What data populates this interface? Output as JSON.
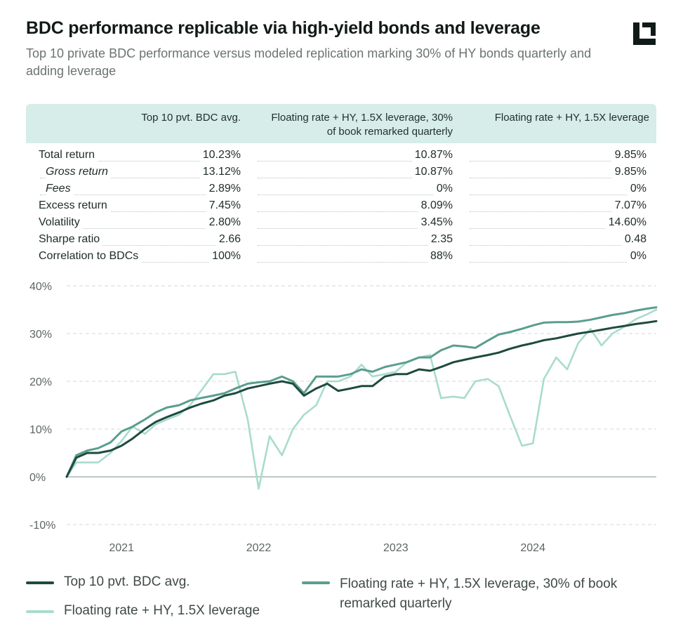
{
  "header": {
    "title": "BDC performance replicable via high-yield bonds and leverage",
    "subtitle": "Top 10 private BDC performance versus modeled replication marking 30% of HY bonds quarterly and adding leverage",
    "logo_icon": "bracket-logo-icon"
  },
  "table": {
    "columns": [
      "Top 10 pvt. BDC avg.",
      "Floating rate + HY, 1.5X leverage, 30% of book remarked quarterly",
      "Floating rate + HY, 1.5X leverage"
    ],
    "rows": [
      {
        "label": "Total return",
        "italic": false,
        "values": [
          "10.23%",
          "10.87%",
          "9.85%"
        ]
      },
      {
        "label": "Gross return",
        "italic": true,
        "values": [
          "13.12%",
          "10.87%",
          "9.85%"
        ]
      },
      {
        "label": "Fees",
        "italic": true,
        "values": [
          "2.89%",
          "0%",
          "0%"
        ]
      },
      {
        "label": "Excess return",
        "italic": false,
        "values": [
          "7.45%",
          "8.09%",
          "7.07%"
        ]
      },
      {
        "label": "Volatility",
        "italic": false,
        "values": [
          "2.80%",
          "3.45%",
          "14.60%"
        ]
      },
      {
        "label": "Sharpe ratio",
        "italic": false,
        "values": [
          "2.66",
          "2.35",
          "0.48"
        ]
      },
      {
        "label": "Correlation to BDCs",
        "italic": false,
        "values": [
          "100%",
          "88%",
          "0%"
        ]
      }
    ]
  },
  "chart_data": {
    "type": "line",
    "title": "",
    "xlabel": "",
    "ylabel": "",
    "ylim": [
      -10,
      40
    ],
    "y_ticks": [
      40,
      30,
      20,
      10,
      0,
      -10
    ],
    "y_tick_labels": [
      "40%",
      "30%",
      "20%",
      "10%",
      "0%",
      "-10%"
    ],
    "x_ticks": [
      2021,
      2022,
      2023,
      2024
    ],
    "x_tick_labels": [
      "2021",
      "2022",
      "2023",
      "2024"
    ],
    "x_range": [
      2020.6,
      2024.9
    ],
    "grid": "dashed horizontal",
    "legend": "bottom",
    "series": [
      {
        "name": "Top 10 pvt. BDC avg.",
        "color": "#1e4a3f",
        "x": [
          2020.6,
          2020.67,
          2020.75,
          2020.83,
          2020.92,
          2021.0,
          2021.08,
          2021.17,
          2021.25,
          2021.33,
          2021.42,
          2021.5,
          2021.58,
          2021.67,
          2021.75,
          2021.83,
          2021.92,
          2022.0,
          2022.08,
          2022.17,
          2022.25,
          2022.33,
          2022.42,
          2022.5,
          2022.58,
          2022.67,
          2022.75,
          2022.83,
          2022.92,
          2023.0,
          2023.08,
          2023.17,
          2023.25,
          2023.33,
          2023.42,
          2023.5,
          2023.58,
          2023.67,
          2023.75,
          2023.83,
          2023.92,
          2024.0,
          2024.08,
          2024.17,
          2024.25,
          2024.33,
          2024.42,
          2024.5,
          2024.58,
          2024.67,
          2024.75,
          2024.83,
          2024.9
        ],
        "values": [
          0,
          4,
          5,
          5,
          5.5,
          6.5,
          8,
          10,
          11.5,
          12.5,
          13.5,
          14.5,
          15.3,
          16,
          17,
          17.5,
          18.5,
          19,
          19.5,
          20,
          19.5,
          17,
          18.5,
          19.5,
          18,
          18.5,
          19,
          19,
          21,
          21.5,
          21.5,
          22.5,
          22.2,
          23,
          24,
          24.5,
          25,
          25.5,
          26,
          26.8,
          27.5,
          28,
          28.6,
          29,
          29.5,
          30,
          30.4,
          30.8,
          31.2,
          31.6,
          32,
          32.3,
          32.6
        ]
      },
      {
        "name": "Floating rate + HY, 1.5X leverage, 30% of book remarked quarterly",
        "color": "#5a9e8e",
        "x": [
          2020.6,
          2020.67,
          2020.75,
          2020.83,
          2020.92,
          2021.0,
          2021.08,
          2021.17,
          2021.25,
          2021.33,
          2021.42,
          2021.5,
          2021.58,
          2021.67,
          2021.75,
          2021.83,
          2021.92,
          2022.0,
          2022.08,
          2022.17,
          2022.25,
          2022.33,
          2022.42,
          2022.5,
          2022.58,
          2022.67,
          2022.75,
          2022.83,
          2022.92,
          2023.0,
          2023.08,
          2023.17,
          2023.25,
          2023.33,
          2023.42,
          2023.5,
          2023.58,
          2023.67,
          2023.75,
          2023.83,
          2023.92,
          2024.0,
          2024.08,
          2024.17,
          2024.25,
          2024.33,
          2024.42,
          2024.5,
          2024.58,
          2024.67,
          2024.75,
          2024.83,
          2024.9
        ],
        "values": [
          0,
          4.5,
          5.5,
          6,
          7.2,
          9.5,
          10.5,
          12,
          13.5,
          14.5,
          15,
          16,
          16.5,
          17,
          17.5,
          18.5,
          19.5,
          19.8,
          20,
          21,
          20,
          17.5,
          21,
          21,
          21,
          21.5,
          22.5,
          22,
          23,
          23.5,
          24,
          25,
          25,
          26.5,
          27.5,
          27.3,
          27,
          28.5,
          29.8,
          30.3,
          31,
          31.7,
          32.3,
          32.4,
          32.4,
          32.5,
          32.9,
          33.4,
          33.9,
          34.3,
          34.8,
          35.2,
          35.5
        ]
      },
      {
        "name": "Floating rate + HY, 1.5X leverage",
        "color": "#a8dccd",
        "x": [
          2020.6,
          2020.67,
          2020.75,
          2020.83,
          2020.92,
          2021.0,
          2021.08,
          2021.17,
          2021.25,
          2021.33,
          2021.42,
          2021.5,
          2021.58,
          2021.67,
          2021.75,
          2021.83,
          2021.92,
          2022.0,
          2022.08,
          2022.17,
          2022.25,
          2022.33,
          2022.42,
          2022.5,
          2022.58,
          2022.67,
          2022.75,
          2022.83,
          2022.92,
          2023.0,
          2023.08,
          2023.17,
          2023.25,
          2023.33,
          2023.42,
          2023.5,
          2023.58,
          2023.67,
          2023.75,
          2023.83,
          2023.92,
          2024.0,
          2024.08,
          2024.17,
          2024.25,
          2024.33,
          2024.42,
          2024.5,
          2024.58,
          2024.67,
          2024.75,
          2024.83,
          2024.9
        ],
        "values": [
          0,
          3,
          3,
          3,
          5,
          7.5,
          10.5,
          9,
          11,
          12,
          13,
          15,
          18,
          21.5,
          21.5,
          22,
          12,
          -2.5,
          8.5,
          4.5,
          10,
          13,
          15,
          20,
          20,
          21,
          23.5,
          21,
          21.5,
          22,
          24,
          25,
          25.5,
          16.5,
          16.8,
          16.5,
          20,
          20.5,
          19,
          13,
          6.5,
          7,
          20.5,
          25,
          22.5,
          28,
          31,
          27.5,
          30,
          31.5,
          33,
          34,
          35
        ]
      }
    ]
  }
}
